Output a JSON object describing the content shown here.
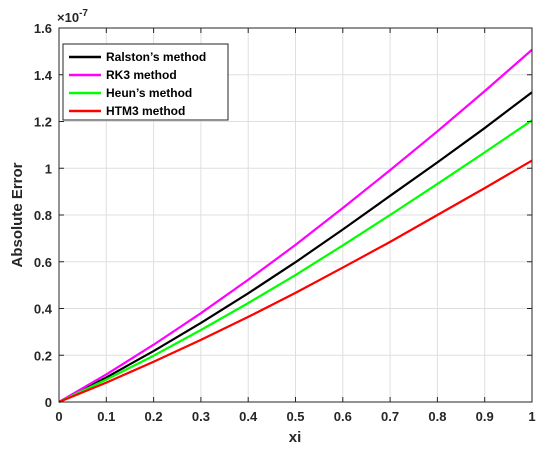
{
  "chart_data": {
    "type": "line",
    "xlabel": "xi",
    "ylabel": "Absolute Error",
    "y_multiplier": "×10",
    "y_exponent": "-7",
    "xlim": [
      0,
      1
    ],
    "ylim": [
      0,
      1.6
    ],
    "xticks": [
      "0",
      "0.1",
      "0.2",
      "0.3",
      "0.4",
      "0.5",
      "0.6",
      "0.7",
      "0.8",
      "0.9",
      "1"
    ],
    "yticks": [
      "0",
      "0.2",
      "0.4",
      "0.6",
      "0.8",
      "1",
      "1.2",
      "1.4",
      "1.6"
    ],
    "grid": true,
    "legend_position": "top-left",
    "x": [
      0,
      0.1,
      0.2,
      0.3,
      0.4,
      0.5,
      0.6,
      0.7,
      0.8,
      0.9,
      1.0
    ],
    "series": [
      {
        "name": "Ralston’s method",
        "color": "#000000",
        "values": [
          0,
          0.105,
          0.218,
          0.338,
          0.465,
          0.598,
          0.738,
          0.882,
          1.025,
          1.172,
          1.325
        ]
      },
      {
        "name": "RK3 method",
        "color": "#ff00ff",
        "values": [
          0,
          0.118,
          0.245,
          0.38,
          0.523,
          0.672,
          0.83,
          0.992,
          1.158,
          1.33,
          1.507
        ]
      },
      {
        "name": "Heun’s method",
        "color": "#00ff00",
        "values": [
          0,
          0.096,
          0.198,
          0.308,
          0.423,
          0.543,
          0.67,
          0.8,
          0.933,
          1.068,
          1.205
        ]
      },
      {
        "name": "HTM3 method",
        "color": "#ff0000",
        "values": [
          0,
          0.083,
          0.172,
          0.266,
          0.364,
          0.467,
          0.575,
          0.685,
          0.8,
          0.915,
          1.033
        ]
      }
    ]
  }
}
